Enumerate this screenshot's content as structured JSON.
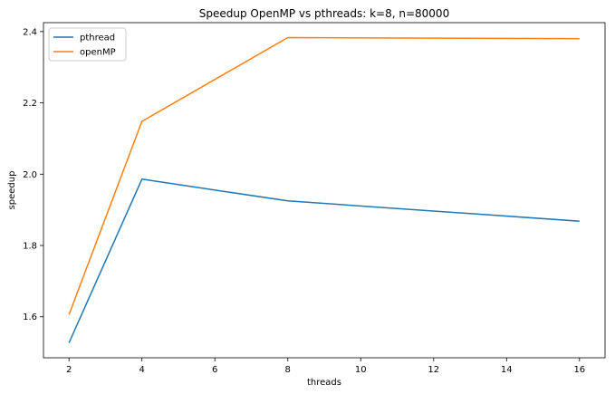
{
  "chart_data": {
    "type": "line",
    "title": "Speedup OpenMP vs pthreads: k=8, n=80000",
    "xlabel": "threads",
    "ylabel": "speedup",
    "x": [
      2,
      4,
      8,
      16
    ],
    "series": [
      {
        "name": "pthread",
        "values": [
          1.527,
          1.986,
          1.925,
          1.868
        ],
        "color": "#1f77b4"
      },
      {
        "name": "openMP",
        "values": [
          1.606,
          2.148,
          2.383,
          2.38
        ],
        "color": "#ff7f0e"
      }
    ],
    "xlim": [
      1.3,
      16.7
    ],
    "ylim": [
      1.485,
      2.425
    ],
    "x_ticks": [
      2,
      4,
      6,
      8,
      10,
      12,
      14,
      16
    ],
    "y_ticks": [
      1.6,
      1.8,
      2.0,
      2.2,
      2.4
    ],
    "x_tick_labels": [
      "2",
      "4",
      "6",
      "8",
      "10",
      "12",
      "14",
      "16"
    ],
    "y_tick_labels": [
      "1.6",
      "1.8",
      "2.0",
      "2.2",
      "2.4"
    ],
    "grid": false,
    "legend_position": "top-left"
  }
}
